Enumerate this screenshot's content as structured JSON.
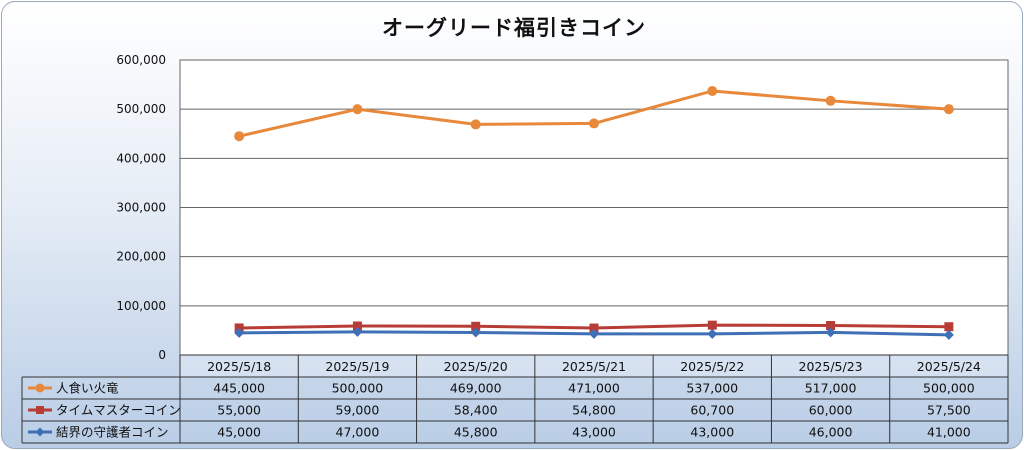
{
  "chart_data": {
    "type": "line",
    "title": "オーグリード福引きコイン",
    "categories": [
      "2025/5/18",
      "2025/5/19",
      "2025/5/20",
      "2025/5/21",
      "2025/5/22",
      "2025/5/23",
      "2025/5/24"
    ],
    "ylim": [
      0,
      600000
    ],
    "yticks": [
      0,
      100000,
      200000,
      300000,
      400000,
      500000,
      600000
    ],
    "ytick_labels": [
      "0",
      "100,000",
      "200,000",
      "300,000",
      "400,000",
      "500,000",
      "600,000"
    ],
    "grid": true,
    "legend": "data-table-left",
    "series": [
      {
        "name": "人食い火竜",
        "color": "#e8883a",
        "marker": "circle",
        "values": [
          445000,
          500000,
          469000,
          471000,
          537000,
          517000,
          500000
        ],
        "labels": [
          "445,000",
          "500,000",
          "469,000",
          "471,000",
          "537,000",
          "517,000",
          "500,000"
        ]
      },
      {
        "name": "タイムマスターコイン",
        "color": "#b83c36",
        "marker": "square",
        "values": [
          55000,
          59000,
          58400,
          54800,
          60700,
          60000,
          57500
        ],
        "labels": [
          "55,000",
          "59,000",
          "58,400",
          "54,800",
          "60,700",
          "60,000",
          "57,500"
        ]
      },
      {
        "name": "結界の守護者コイン",
        "color": "#3f6fb5",
        "marker": "diamond",
        "values": [
          45000,
          47000,
          45800,
          43000,
          43000,
          46000,
          41000
        ],
        "labels": [
          "45,000",
          "47,000",
          "45,800",
          "43,000",
          "43,000",
          "46,000",
          "41,000"
        ]
      }
    ]
  }
}
